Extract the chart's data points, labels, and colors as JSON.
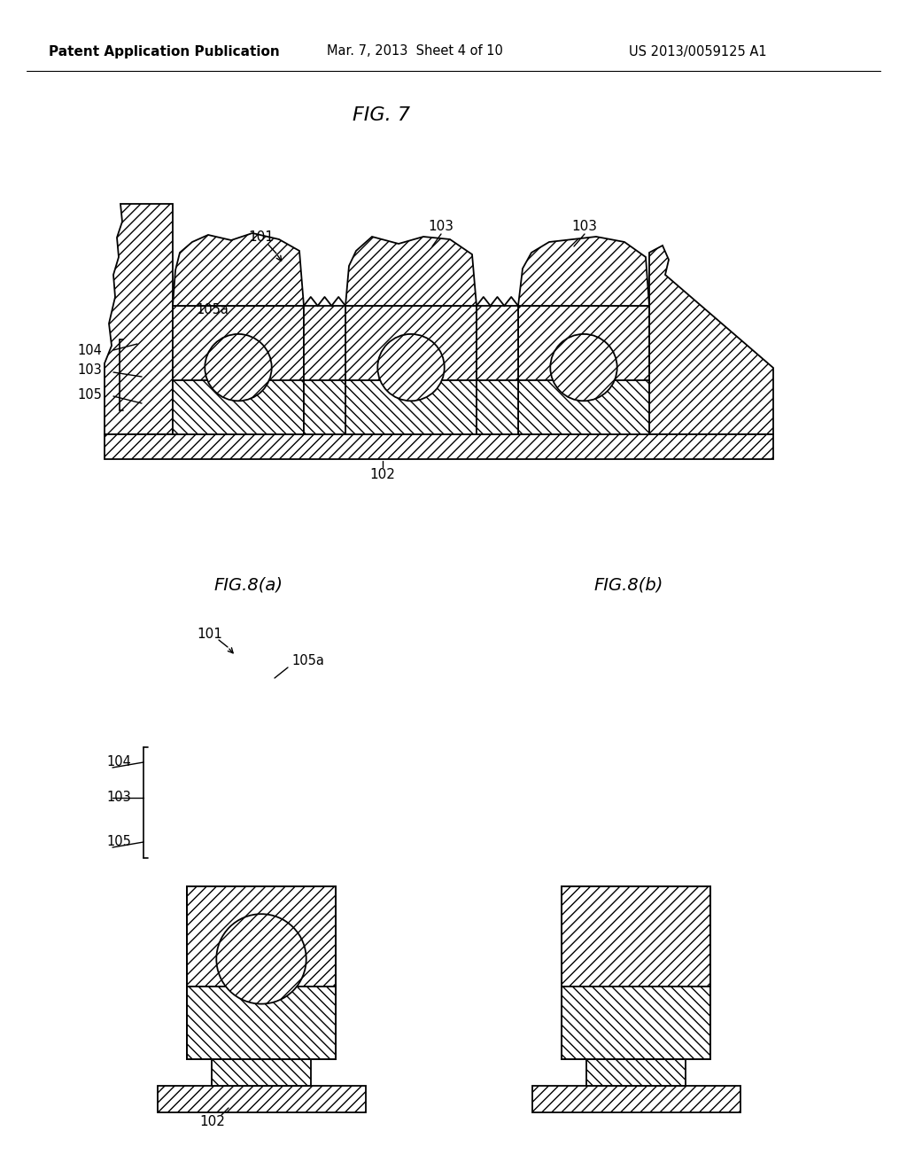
{
  "bg_color": "#ffffff",
  "lc": "#000000",
  "header_left": "Patent Application Publication",
  "header_mid": "Mar. 7, 2013  Sheet 4 of 10",
  "header_right": "US 2013/0059125 A1",
  "fig7_title": "FIG. 7",
  "fig8a_title": "FIG.8(a)",
  "fig8b_title": "FIG.8(b)",
  "lw": 1.3
}
